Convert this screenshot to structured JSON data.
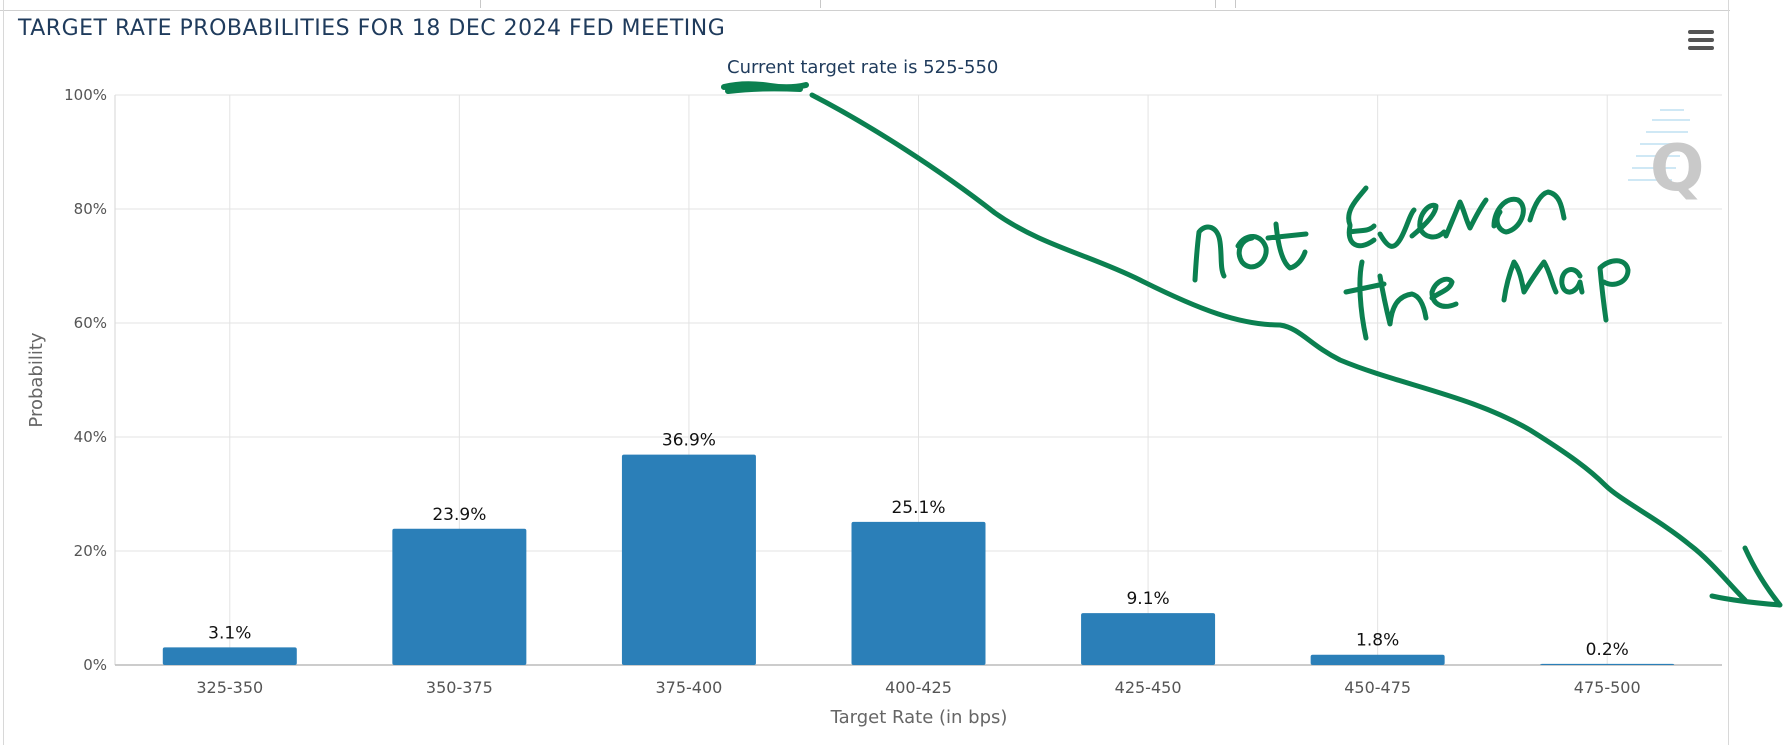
{
  "page": {
    "title": "TARGET RATE PROBABILITIES FOR 18 DEC 2024 FED MEETING",
    "menu_icon": "hamburger-menu-icon",
    "logo_text": "Q"
  },
  "chart_data": {
    "type": "bar",
    "title": "TARGET RATE PROBABILITIES FOR 18 DEC 2024 FED MEETING",
    "subtitle": "Current target rate is 525-550",
    "xlabel": "Target Rate (in bps)",
    "ylabel": "Probability",
    "categories": [
      "325-350",
      "350-375",
      "375-400",
      "400-425",
      "425-450",
      "450-475",
      "475-500"
    ],
    "values": [
      3.1,
      23.9,
      36.9,
      25.1,
      9.1,
      1.8,
      0.2
    ],
    "data_labels": [
      "3.1%",
      "23.9%",
      "36.9%",
      "25.1%",
      "9.1%",
      "1.8%",
      "0.2%"
    ],
    "ylim": [
      0,
      100
    ],
    "y_ticks": [
      0,
      20,
      40,
      60,
      80,
      100
    ],
    "y_tick_labels": [
      "0%",
      "20%",
      "40%",
      "60%",
      "80%",
      "100%"
    ],
    "grid": true,
    "bar_color": "#2b7fb8"
  },
  "annotation": {
    "text_line1": "not even on",
    "text_line2": "the map",
    "color": "#0b8050"
  }
}
